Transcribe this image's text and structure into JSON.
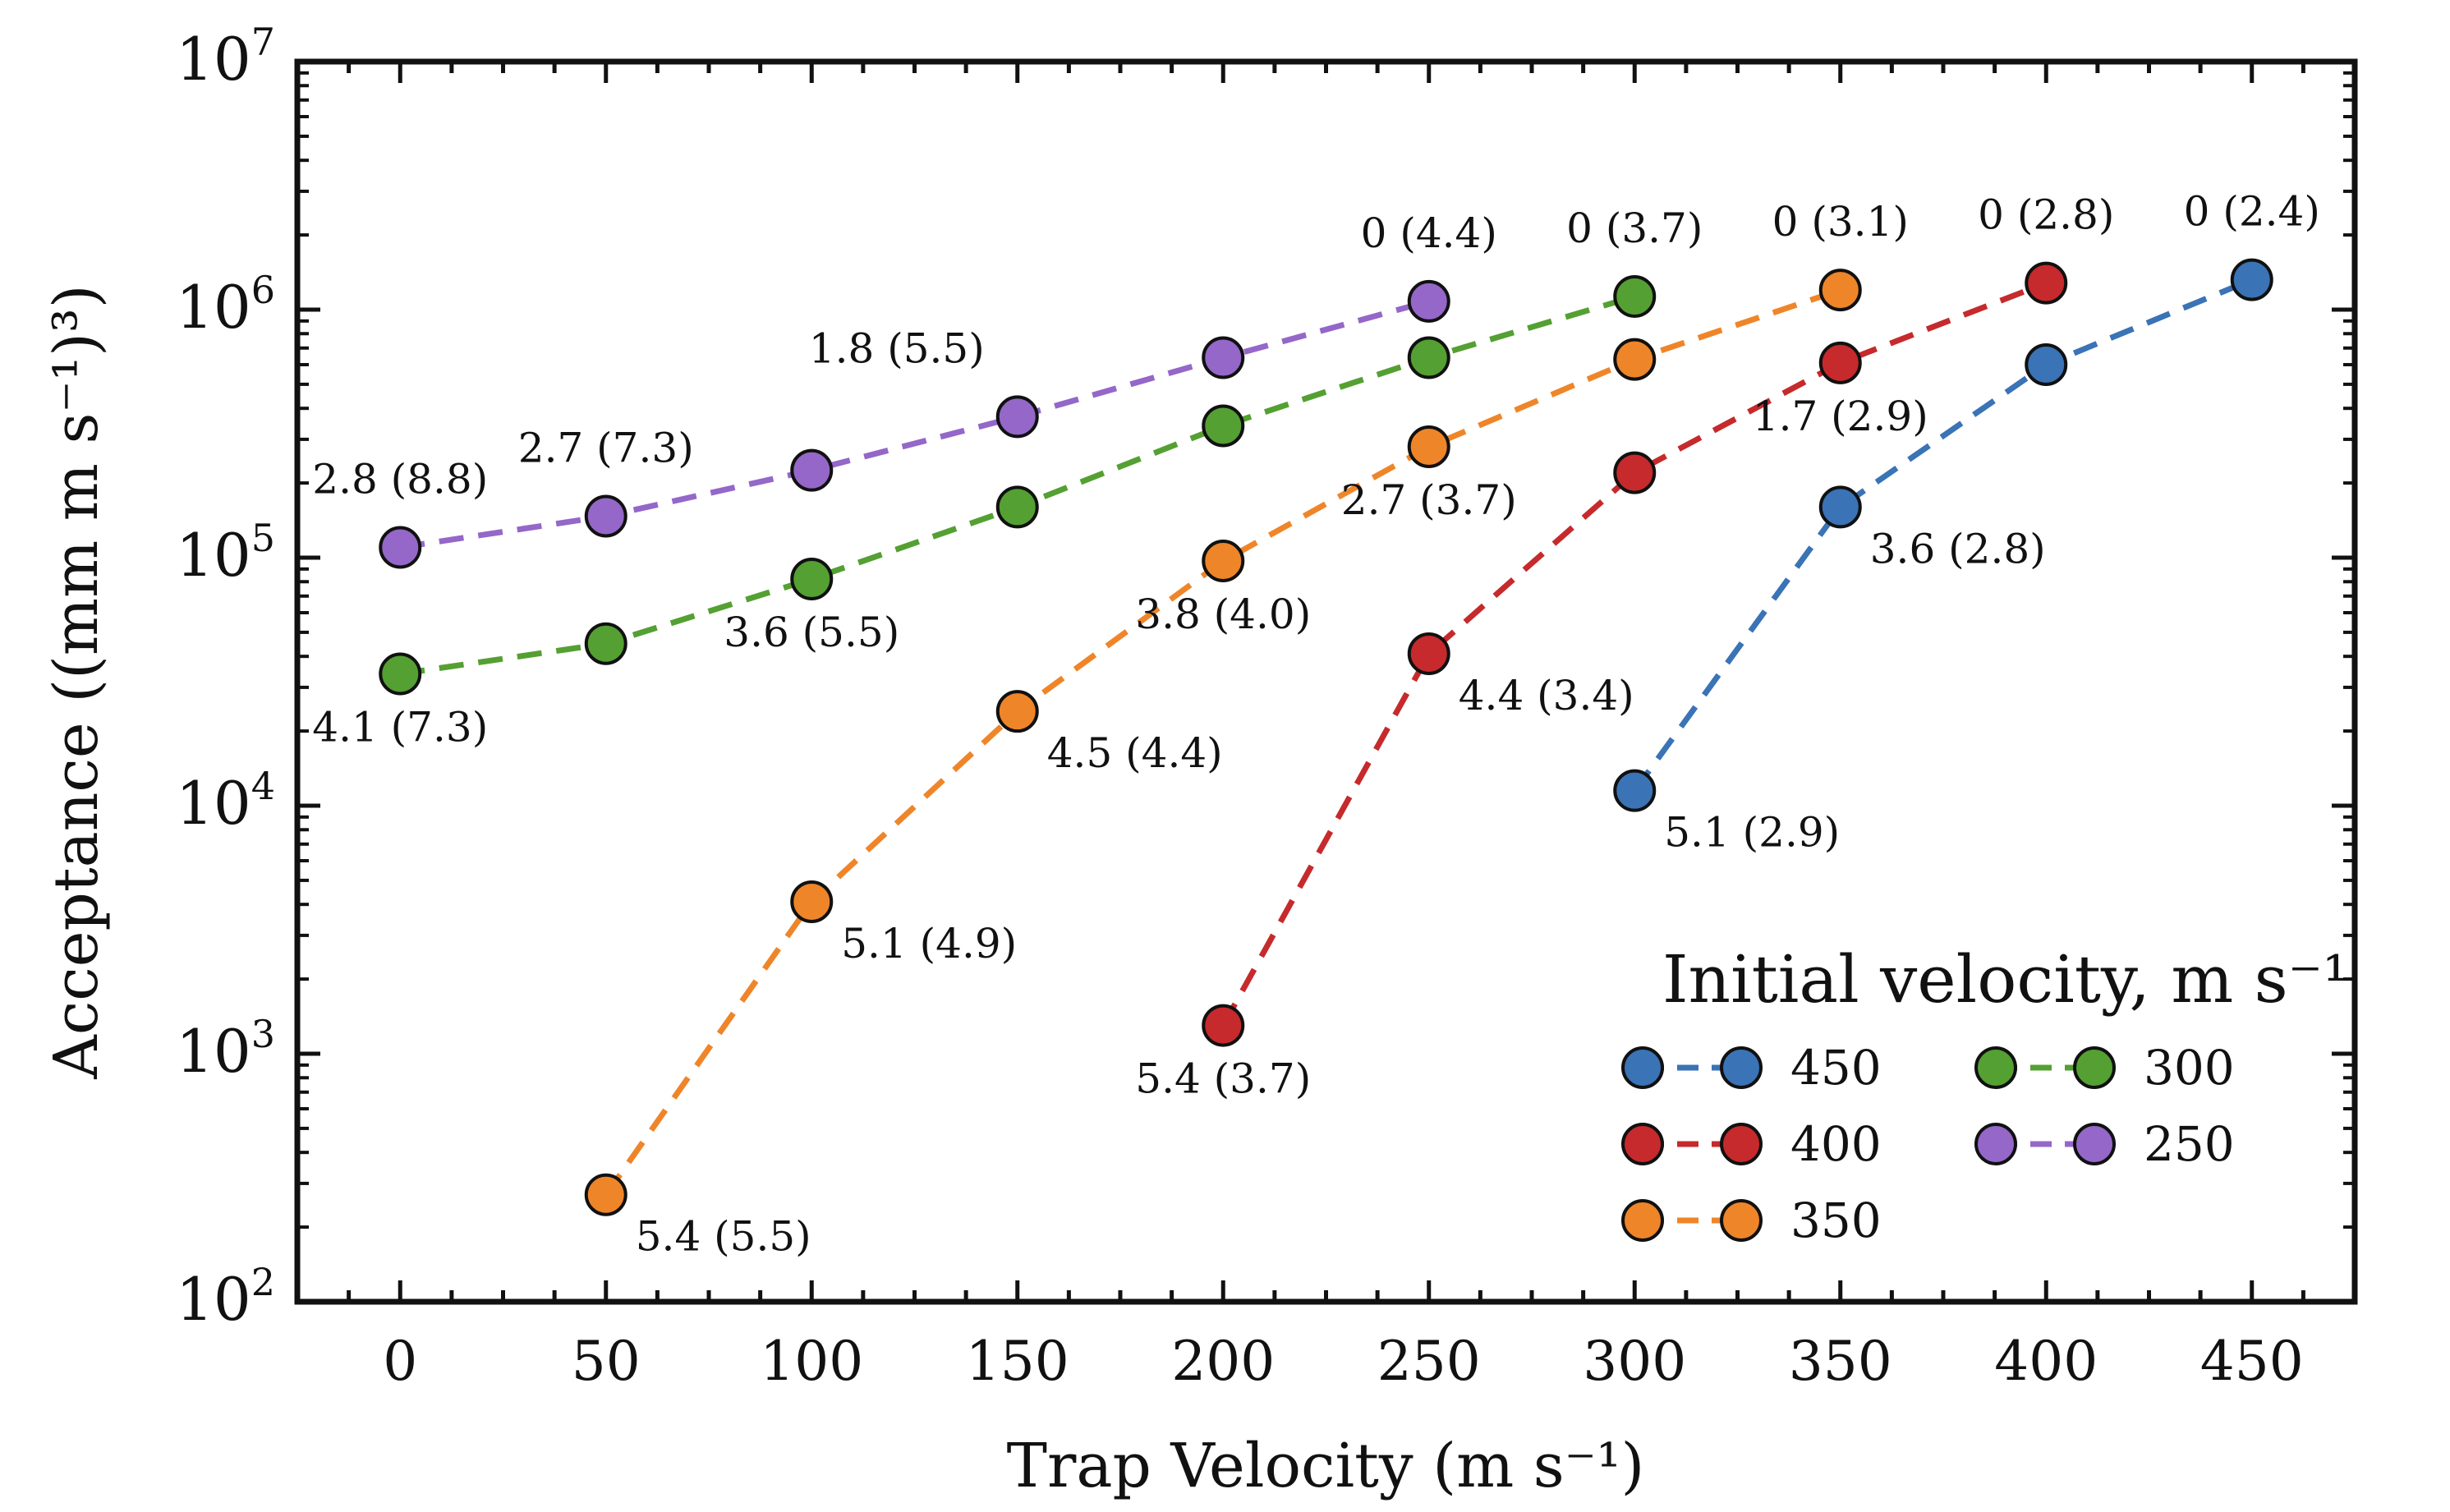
{
  "chart_data": {
    "type": "scatter",
    "xlabel": "Trap Velocity (m s⁻¹)",
    "ylabel": "Acceptance ((mm m s⁻¹)³)",
    "xlim": [
      -25,
      475
    ],
    "ylim_log10": [
      2,
      7
    ],
    "yscale": "log",
    "xticks": [
      0,
      50,
      100,
      150,
      200,
      250,
      300,
      350,
      400,
      450
    ],
    "xtick_labels": [
      "0",
      "50",
      "100",
      "150",
      "200",
      "250",
      "300",
      "350",
      "400",
      "450"
    ],
    "yticks": [
      2,
      3,
      4,
      5,
      6,
      7
    ],
    "ytick_base": "10",
    "ytick_exps": [
      "2",
      "3",
      "4",
      "5",
      "6",
      "7"
    ],
    "legend": {
      "title": "Initial velocity, m s⁻¹",
      "position": "lower-right",
      "columns": 2
    },
    "series": [
      {
        "name": "450",
        "color": "#3a73b6",
        "x": [
          300,
          350,
          400,
          450
        ],
        "y": [
          11500,
          160000,
          600000,
          1320000
        ],
        "labels": [
          "5.1 (2.9)",
          "3.6 (2.8)",
          "",
          "0 (2.4)"
        ],
        "label_pos": [
          "br",
          "br",
          "",
          "t"
        ]
      },
      {
        "name": "400",
        "color": "#c62a2c",
        "x": [
          200,
          250,
          300,
          350,
          400
        ],
        "y": [
          1300,
          41000,
          220000,
          610000,
          1280000
        ],
        "labels": [
          "5.4 (3.7)",
          "4.4 (3.4)",
          "",
          "1.7 (2.9)",
          "0 (2.8)"
        ],
        "label_pos": [
          "b",
          "br",
          "",
          "b",
          "t"
        ]
      },
      {
        "name": "350",
        "color": "#ef8529",
        "x": [
          50,
          100,
          150,
          200,
          250,
          300,
          350
        ],
        "y": [
          270,
          4100,
          24000,
          97000,
          280000,
          630000,
          1200000
        ],
        "labels": [
          "5.4 (5.5)",
          "5.1 (4.9)",
          "4.5 (4.4)",
          "3.8 (4.0)",
          "2.7 (3.7)",
          "",
          "0 (3.1)"
        ],
        "label_pos": [
          "br",
          "br",
          "br",
          "b",
          "b",
          "",
          "t"
        ]
      },
      {
        "name": "300",
        "color": "#54a032",
        "x": [
          0,
          50,
          100,
          150,
          200,
          250,
          300
        ],
        "y": [
          34000,
          45000,
          82000,
          160000,
          340000,
          640000,
          1130000
        ],
        "labels": [
          "4.1 (7.3)",
          "",
          "3.6 (5.5)",
          "",
          "",
          "",
          "0 (3.7)"
        ],
        "label_pos": [
          "b",
          "",
          "b",
          "",
          "",
          "",
          "t"
        ]
      },
      {
        "name": "250",
        "color": "#9467c9",
        "x": [
          0,
          50,
          100,
          150,
          200,
          250
        ],
        "y": [
          110000,
          147000,
          225000,
          370000,
          640000,
          1080000
        ],
        "labels": [
          "2.8 (8.8)",
          "2.7 (7.3)",
          "",
          "1.8 (5.5)",
          "",
          "0 (4.4)"
        ],
        "label_pos": [
          "t",
          "t",
          "",
          "tl",
          "",
          "t"
        ]
      }
    ]
  }
}
